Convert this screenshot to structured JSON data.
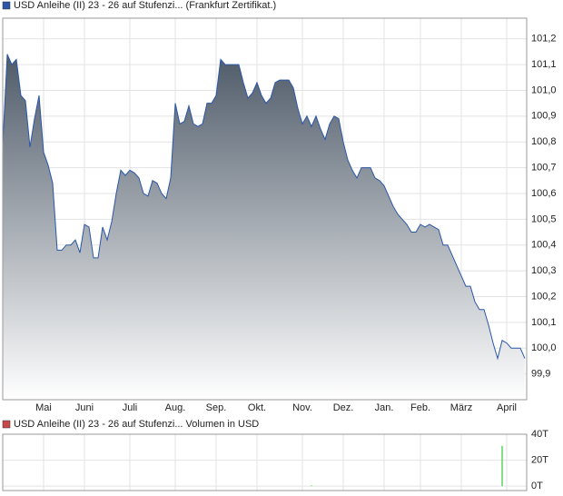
{
  "chart_data": [
    {
      "type": "area",
      "categories": [
        null,
        null,
        null,
        null,
        null,
        null,
        null,
        null,
        null,
        "Mai",
        null,
        null,
        null,
        null,
        null,
        null,
        null,
        null,
        "Juni",
        null,
        null,
        null,
        null,
        null,
        null,
        null,
        null,
        null,
        "Juli",
        null,
        null,
        null,
        null,
        null,
        null,
        null,
        null,
        null,
        "Aug.",
        null,
        null,
        null,
        null,
        null,
        null,
        null,
        null,
        "Sep.",
        null,
        null,
        null,
        null,
        null,
        null,
        null,
        null,
        "Okt.",
        null,
        null,
        null,
        null,
        null,
        null,
        null,
        null,
        null,
        "Nov.",
        null,
        null,
        null,
        null,
        null,
        null,
        null,
        null,
        "Dez.",
        null,
        null,
        null,
        null,
        null,
        null,
        null,
        null,
        "Jan.",
        null,
        null,
        null,
        null,
        null,
        null,
        null,
        "Feb.",
        null,
        null,
        null,
        null,
        null,
        null,
        null,
        null,
        "März",
        null,
        null,
        null,
        null,
        null,
        null,
        null,
        null,
        null,
        "April",
        null,
        null,
        null,
        null
      ],
      "series": [
        {
          "name": "USD Anleihe (II) 23 - 26 auf Stufenzi... (Frankfurt Zertifikat.)",
          "color": "#2a56a8",
          "values": [
            100.79,
            101.14,
            101.1,
            101.12,
            100.98,
            100.96,
            100.78,
            100.89,
            100.98,
            100.76,
            100.71,
            100.64,
            100.38,
            100.38,
            100.4,
            100.4,
            100.42,
            100.37,
            100.48,
            100.47,
            100.35,
            100.35,
            100.47,
            100.42,
            100.49,
            100.6,
            100.69,
            100.67,
            100.69,
            100.68,
            100.66,
            100.6,
            100.59,
            100.65,
            100.64,
            100.6,
            100.58,
            100.66,
            100.95,
            100.87,
            100.88,
            100.94,
            100.87,
            100.86,
            100.87,
            100.95,
            100.95,
            100.98,
            101.12,
            101.1,
            101.1,
            101.1,
            101.1,
            101.03,
            100.97,
            100.99,
            101.03,
            100.98,
            100.95,
            100.97,
            101.03,
            101.04,
            101.04,
            101.04,
            101.01,
            100.93,
            100.87,
            100.9,
            100.86,
            100.9,
            100.85,
            100.81,
            100.87,
            100.9,
            100.89,
            100.8,
            100.73,
            100.69,
            100.66,
            100.7,
            100.7,
            100.7,
            100.66,
            100.65,
            100.63,
            100.59,
            100.55,
            100.52,
            100.5,
            100.48,
            100.45,
            100.45,
            100.48,
            100.47,
            100.48,
            100.47,
            100.46,
            100.4,
            100.4,
            100.36,
            100.32,
            100.28,
            100.24,
            100.24,
            100.18,
            100.15,
            100.15,
            100.09,
            100.02,
            99.96,
            100.03,
            100.02,
            100.0,
            100.0,
            100.0,
            99.96
          ]
        }
      ],
      "ylim": [
        99.8,
        101.28
      ],
      "yticks": [
        {
          "value": 99.9,
          "label": "99,9"
        },
        {
          "value": 100.0,
          "label": "100,0"
        },
        {
          "value": 100.1,
          "label": "100,1"
        },
        {
          "value": 100.2,
          "label": "100,2"
        },
        {
          "value": 100.3,
          "label": "100,3"
        },
        {
          "value": 100.4,
          "label": "100,4"
        },
        {
          "value": 100.5,
          "label": "100,5"
        },
        {
          "value": 100.6,
          "label": "100,6"
        },
        {
          "value": 100.7,
          "label": "100,7"
        },
        {
          "value": 100.8,
          "label": "100,8"
        },
        {
          "value": 100.9,
          "label": "100,9"
        },
        {
          "value": 101.0,
          "label": "101,0"
        },
        {
          "value": 101.1,
          "label": "101,1"
        },
        {
          "value": 101.2,
          "label": "101,2"
        }
      ],
      "grid": true
    },
    {
      "type": "bar",
      "series": [
        {
          "name": "USD Anleihe (II) 23 - 26 auf Stufenzi... Volumen in USD",
          "color": "#c84848",
          "bar_color": "#33cc33",
          "values": [
            0,
            0,
            0,
            0,
            0,
            0,
            0,
            0,
            0,
            0,
            0,
            0,
            0,
            0,
            0,
            0,
            0,
            0,
            0,
            0,
            0,
            0,
            0,
            0,
            0,
            0,
            0,
            0,
            0,
            0,
            0,
            0,
            0,
            0,
            0,
            0,
            0,
            0,
            0,
            0,
            0,
            0,
            0,
            0,
            0,
            0,
            0,
            0,
            0,
            0,
            0,
            0,
            0,
            0,
            0,
            0,
            0,
            0,
            0,
            0,
            0,
            0,
            0,
            0,
            0,
            0,
            0,
            0,
            500,
            0,
            0,
            0,
            0,
            0,
            0,
            0,
            0,
            0,
            0,
            0,
            0,
            0,
            0,
            0,
            0,
            0,
            0,
            0,
            0,
            0,
            0,
            0,
            0,
            0,
            0,
            0,
            0,
            0,
            0,
            0,
            0,
            0,
            0,
            0,
            0,
            0,
            0,
            0,
            0,
            0,
            31000,
            0,
            0,
            0,
            0,
            0
          ]
        }
      ],
      "ylim": [
        -3400,
        40000
      ],
      "yticks": [
        {
          "value": 0,
          "label": "0T"
        },
        {
          "value": 20000,
          "label": "20T"
        },
        {
          "value": 40000,
          "label": "40T"
        }
      ],
      "grid": true
    }
  ]
}
